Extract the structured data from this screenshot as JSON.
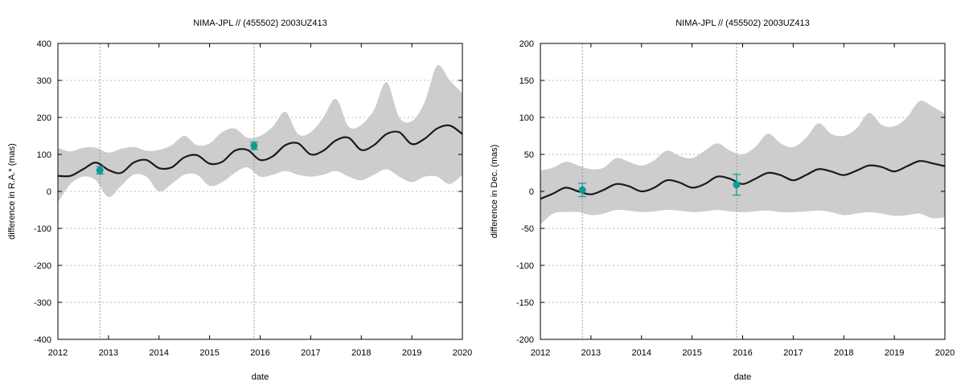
{
  "chart_data": [
    {
      "type": "line",
      "title": "NIMA-JPL // (455502) 2003UZ413",
      "xlabel": "date",
      "ylabel": "difference in R.A.* (mas)",
      "xlim": [
        2012,
        2020
      ],
      "ylim": [
        -400,
        400
      ],
      "xticks": [
        "2012",
        "2013",
        "2014",
        "2015",
        "2016",
        "2017",
        "2018",
        "2019",
        "2020"
      ],
      "yticks": [
        "-400",
        "-300",
        "-200",
        "-100",
        "0",
        "100",
        "200",
        "300",
        "400"
      ],
      "grid": true,
      "observation_dates": [
        2012.83,
        2015.88
      ],
      "series": [
        {
          "type": "line",
          "x": [
            2012.0,
            2012.25,
            2012.5,
            2012.75,
            2013.0,
            2013.25,
            2013.5,
            2013.75,
            2014.0,
            2014.25,
            2014.5,
            2014.75,
            2015.0,
            2015.25,
            2015.5,
            2015.75,
            2016.0,
            2016.25,
            2016.5,
            2016.75,
            2017.0,
            2017.25,
            2017.5,
            2017.75,
            2018.0,
            2018.25,
            2018.5,
            2018.75,
            2019.0,
            2019.25,
            2019.5,
            2019.75,
            2020.0
          ],
          "y": [
            42,
            42,
            60,
            78,
            58,
            50,
            78,
            85,
            63,
            65,
            92,
            98,
            75,
            80,
            110,
            112,
            85,
            95,
            125,
            130,
            100,
            110,
            138,
            145,
            112,
            125,
            155,
            160,
            128,
            142,
            170,
            178,
            155
          ]
        },
        {
          "type": "band",
          "x": [
            2012.0,
            2012.25,
            2012.5,
            2012.75,
            2013.0,
            2013.25,
            2013.5,
            2013.75,
            2014.0,
            2014.25,
            2014.5,
            2014.75,
            2015.0,
            2015.25,
            2015.5,
            2015.75,
            2016.0,
            2016.25,
            2016.5,
            2016.75,
            2017.0,
            2017.25,
            2017.5,
            2017.75,
            2018.0,
            2018.25,
            2018.5,
            2018.75,
            2019.0,
            2019.25,
            2019.5,
            2019.75,
            2020.0
          ],
          "upper": [
            118,
            108,
            118,
            118,
            105,
            115,
            120,
            110,
            112,
            125,
            150,
            125,
            130,
            160,
            170,
            145,
            150,
            175,
            215,
            155,
            160,
            200,
            250,
            175,
            180,
            220,
            295,
            200,
            190,
            240,
            340,
            300,
            265
          ],
          "lower": [
            -30,
            20,
            40,
            30,
            -15,
            15,
            45,
            40,
            0,
            20,
            45,
            45,
            15,
            25,
            50,
            65,
            40,
            45,
            55,
            45,
            40,
            45,
            55,
            40,
            30,
            45,
            60,
            40,
            25,
            40,
            40,
            20,
            45
          ]
        },
        {
          "type": "errorbar",
          "x": [
            2012.83,
            2015.88
          ],
          "y": [
            57,
            123
          ],
          "err": [
            10,
            10
          ]
        }
      ]
    },
    {
      "type": "line",
      "title": "NIMA-JPL // (455502) 2003UZ413",
      "xlabel": "date",
      "ylabel": "difference in Dec. (mas)",
      "xlim": [
        2012,
        2020
      ],
      "ylim": [
        -200,
        200
      ],
      "xticks": [
        "2012",
        "2013",
        "2014",
        "2015",
        "2016",
        "2017",
        "2018",
        "2019",
        "2020"
      ],
      "yticks": [
        "-200",
        "-150",
        "-100",
        "-50",
        "0",
        "50",
        "100",
        "150",
        "200"
      ],
      "grid": true,
      "observation_dates": [
        2012.83,
        2015.88
      ],
      "series": [
        {
          "type": "line",
          "x": [
            2012.0,
            2012.25,
            2012.5,
            2012.75,
            2013.0,
            2013.25,
            2013.5,
            2013.75,
            2014.0,
            2014.25,
            2014.5,
            2014.75,
            2015.0,
            2015.25,
            2015.5,
            2015.75,
            2016.0,
            2016.25,
            2016.5,
            2016.75,
            2017.0,
            2017.25,
            2017.5,
            2017.75,
            2018.0,
            2018.25,
            2018.5,
            2018.75,
            2019.0,
            2019.25,
            2019.5,
            2019.75,
            2020.0
          ],
          "y": [
            -10,
            -3,
            5,
            0,
            -4,
            2,
            10,
            7,
            0,
            5,
            15,
            12,
            5,
            10,
            20,
            17,
            10,
            17,
            25,
            22,
            15,
            22,
            30,
            27,
            22,
            28,
            35,
            33,
            27,
            34,
            41,
            38,
            34
          ]
        },
        {
          "type": "band",
          "x": [
            2012.0,
            2012.25,
            2012.5,
            2012.75,
            2013.0,
            2013.25,
            2013.5,
            2013.75,
            2014.0,
            2014.25,
            2014.5,
            2014.75,
            2015.0,
            2015.25,
            2015.5,
            2015.75,
            2016.0,
            2016.25,
            2016.5,
            2016.75,
            2017.0,
            2017.25,
            2017.5,
            2017.75,
            2018.0,
            2018.25,
            2018.5,
            2018.75,
            2019.0,
            2019.25,
            2019.5,
            2019.75,
            2020.0
          ],
          "upper": [
            28,
            32,
            40,
            35,
            30,
            32,
            45,
            40,
            35,
            42,
            55,
            48,
            45,
            55,
            65,
            55,
            50,
            60,
            78,
            65,
            60,
            72,
            92,
            78,
            75,
            85,
            106,
            90,
            88,
            100,
            122,
            115,
            105
          ],
          "lower": [
            -45,
            -30,
            -28,
            -28,
            -32,
            -30,
            -25,
            -26,
            -28,
            -27,
            -25,
            -26,
            -28,
            -27,
            -25,
            -27,
            -28,
            -27,
            -26,
            -28,
            -28,
            -27,
            -26,
            -28,
            -32,
            -30,
            -28,
            -30,
            -33,
            -32,
            -30,
            -36,
            -35
          ]
        },
        {
          "type": "errorbar",
          "x": [
            2012.83,
            2015.88
          ],
          "y": [
            2,
            9
          ],
          "err": [
            9,
            14
          ]
        }
      ]
    }
  ]
}
